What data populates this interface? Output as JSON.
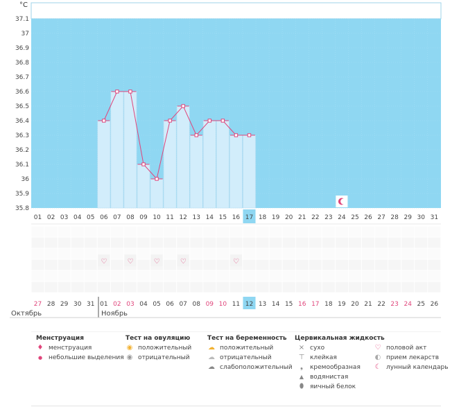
{
  "chart_data": {
    "type": "bar",
    "unit_label": "°C",
    "ylim": [
      35.8,
      37.2
    ],
    "yticks": [
      "37.1",
      "37",
      "36.9",
      "36.8",
      "36.7",
      "36.6",
      "36.5",
      "36.4",
      "36.3",
      "36.2",
      "36.1",
      "36",
      "35.9",
      "35.8"
    ],
    "day_labels": [
      "01",
      "02",
      "03",
      "04",
      "05",
      "06",
      "07",
      "08",
      "09",
      "10",
      "11",
      "12",
      "13",
      "14",
      "15",
      "16",
      "17",
      "18",
      "19",
      "20",
      "21",
      "22",
      "23",
      "24",
      "25",
      "26",
      "27",
      "28",
      "29",
      "30",
      "31"
    ],
    "highlight_day": "17",
    "temperatures": [
      {
        "day": "06",
        "value": 36.4
      },
      {
        "day": "07",
        "value": 36.6
      },
      {
        "day": "08",
        "value": 36.6
      },
      {
        "day": "09",
        "value": 36.1
      },
      {
        "day": "10",
        "value": 36.0
      },
      {
        "day": "11",
        "value": 36.4
      },
      {
        "day": "12",
        "value": 36.5
      },
      {
        "day": "13",
        "value": 36.3
      },
      {
        "day": "14",
        "value": 36.4
      },
      {
        "day": "15",
        "value": 36.4
      },
      {
        "day": "16",
        "value": 36.3
      },
      {
        "day": "17",
        "value": 36.3
      }
    ],
    "moon_day": "24",
    "heart_days": [
      "06",
      "08",
      "10",
      "12",
      "16"
    ],
    "cycle_days": [
      {
        "label": "27",
        "red": true
      },
      {
        "label": "28",
        "red": false
      },
      {
        "label": "29",
        "red": false
      },
      {
        "label": "30",
        "red": false
      },
      {
        "label": "31",
        "red": false
      },
      {
        "label": "01",
        "red": false
      },
      {
        "label": "02",
        "red": true
      },
      {
        "label": "03",
        "red": true
      },
      {
        "label": "04",
        "red": false
      },
      {
        "label": "05",
        "red": false
      },
      {
        "label": "06",
        "red": false
      },
      {
        "label": "07",
        "red": false
      },
      {
        "label": "08",
        "red": false
      },
      {
        "label": "09",
        "red": true
      },
      {
        "label": "10",
        "red": true
      },
      {
        "label": "11",
        "red": false
      },
      {
        "label": "12",
        "red": false
      },
      {
        "label": "13",
        "red": false
      },
      {
        "label": "14",
        "red": false
      },
      {
        "label": "15",
        "red": false
      },
      {
        "label": "16",
        "red": true
      },
      {
        "label": "17",
        "red": true
      },
      {
        "label": "18",
        "red": false
      },
      {
        "label": "19",
        "red": false
      },
      {
        "label": "20",
        "red": false
      },
      {
        "label": "21",
        "red": false
      },
      {
        "label": "22",
        "red": false
      },
      {
        "label": "23",
        "red": true
      },
      {
        "label": "24",
        "red": true
      },
      {
        "label": "25",
        "red": false
      },
      {
        "label": "26",
        "red": false
      }
    ],
    "highlight_cycle_day": "12",
    "month_left": "Октябрь",
    "month_right": "Ноябрь",
    "colors": {
      "background": "#8fd7f2",
      "bar": "#d2edfb",
      "bar_border": "#b8def2",
      "line": "#e0457b",
      "highlight": "#8fd7f2",
      "red_text": "#e0457b",
      "grid": "#f2f2f2"
    }
  },
  "legend": {
    "menstruation": {
      "title": "Менструация",
      "items": [
        {
          "label": "менструация",
          "icon": "drop-icon"
        },
        {
          "label": "небольшие выделения",
          "icon": "small-drop-icon"
        }
      ]
    },
    "ovulation_test": {
      "title": "Тест на овуляцию",
      "items": [
        {
          "label": "положительный",
          "icon": "positive-circle-icon"
        },
        {
          "label": "отрицательный",
          "icon": "negative-circle-icon"
        }
      ]
    },
    "pregnancy_test": {
      "title": "Тест на беременность",
      "items": [
        {
          "label": "положительный",
          "icon": "positive-cloud-icon"
        },
        {
          "label": "отрицательный",
          "icon": "negative-cloud-icon"
        },
        {
          "label": "слабоположительный",
          "icon": "weak-cloud-icon"
        }
      ]
    },
    "cervical_fluid": {
      "title": "Цервикальная жидкость",
      "items": [
        {
          "label": "сухо",
          "icon": "cross-icon"
        },
        {
          "label": "клейкая",
          "icon": "sticky-icon"
        },
        {
          "label": "кремообразная",
          "icon": "creamy-icon"
        },
        {
          "label": "водянистая",
          "icon": "watery-icon"
        },
        {
          "label": "яичный белок",
          "icon": "egg-white-icon"
        }
      ]
    },
    "other": {
      "items": [
        {
          "label": "половой акт",
          "icon": "heart-icon"
        },
        {
          "label": "прием лекарств",
          "icon": "pill-icon"
        },
        {
          "label": "лунный календарь",
          "icon": "moon-icon"
        }
      ]
    }
  }
}
